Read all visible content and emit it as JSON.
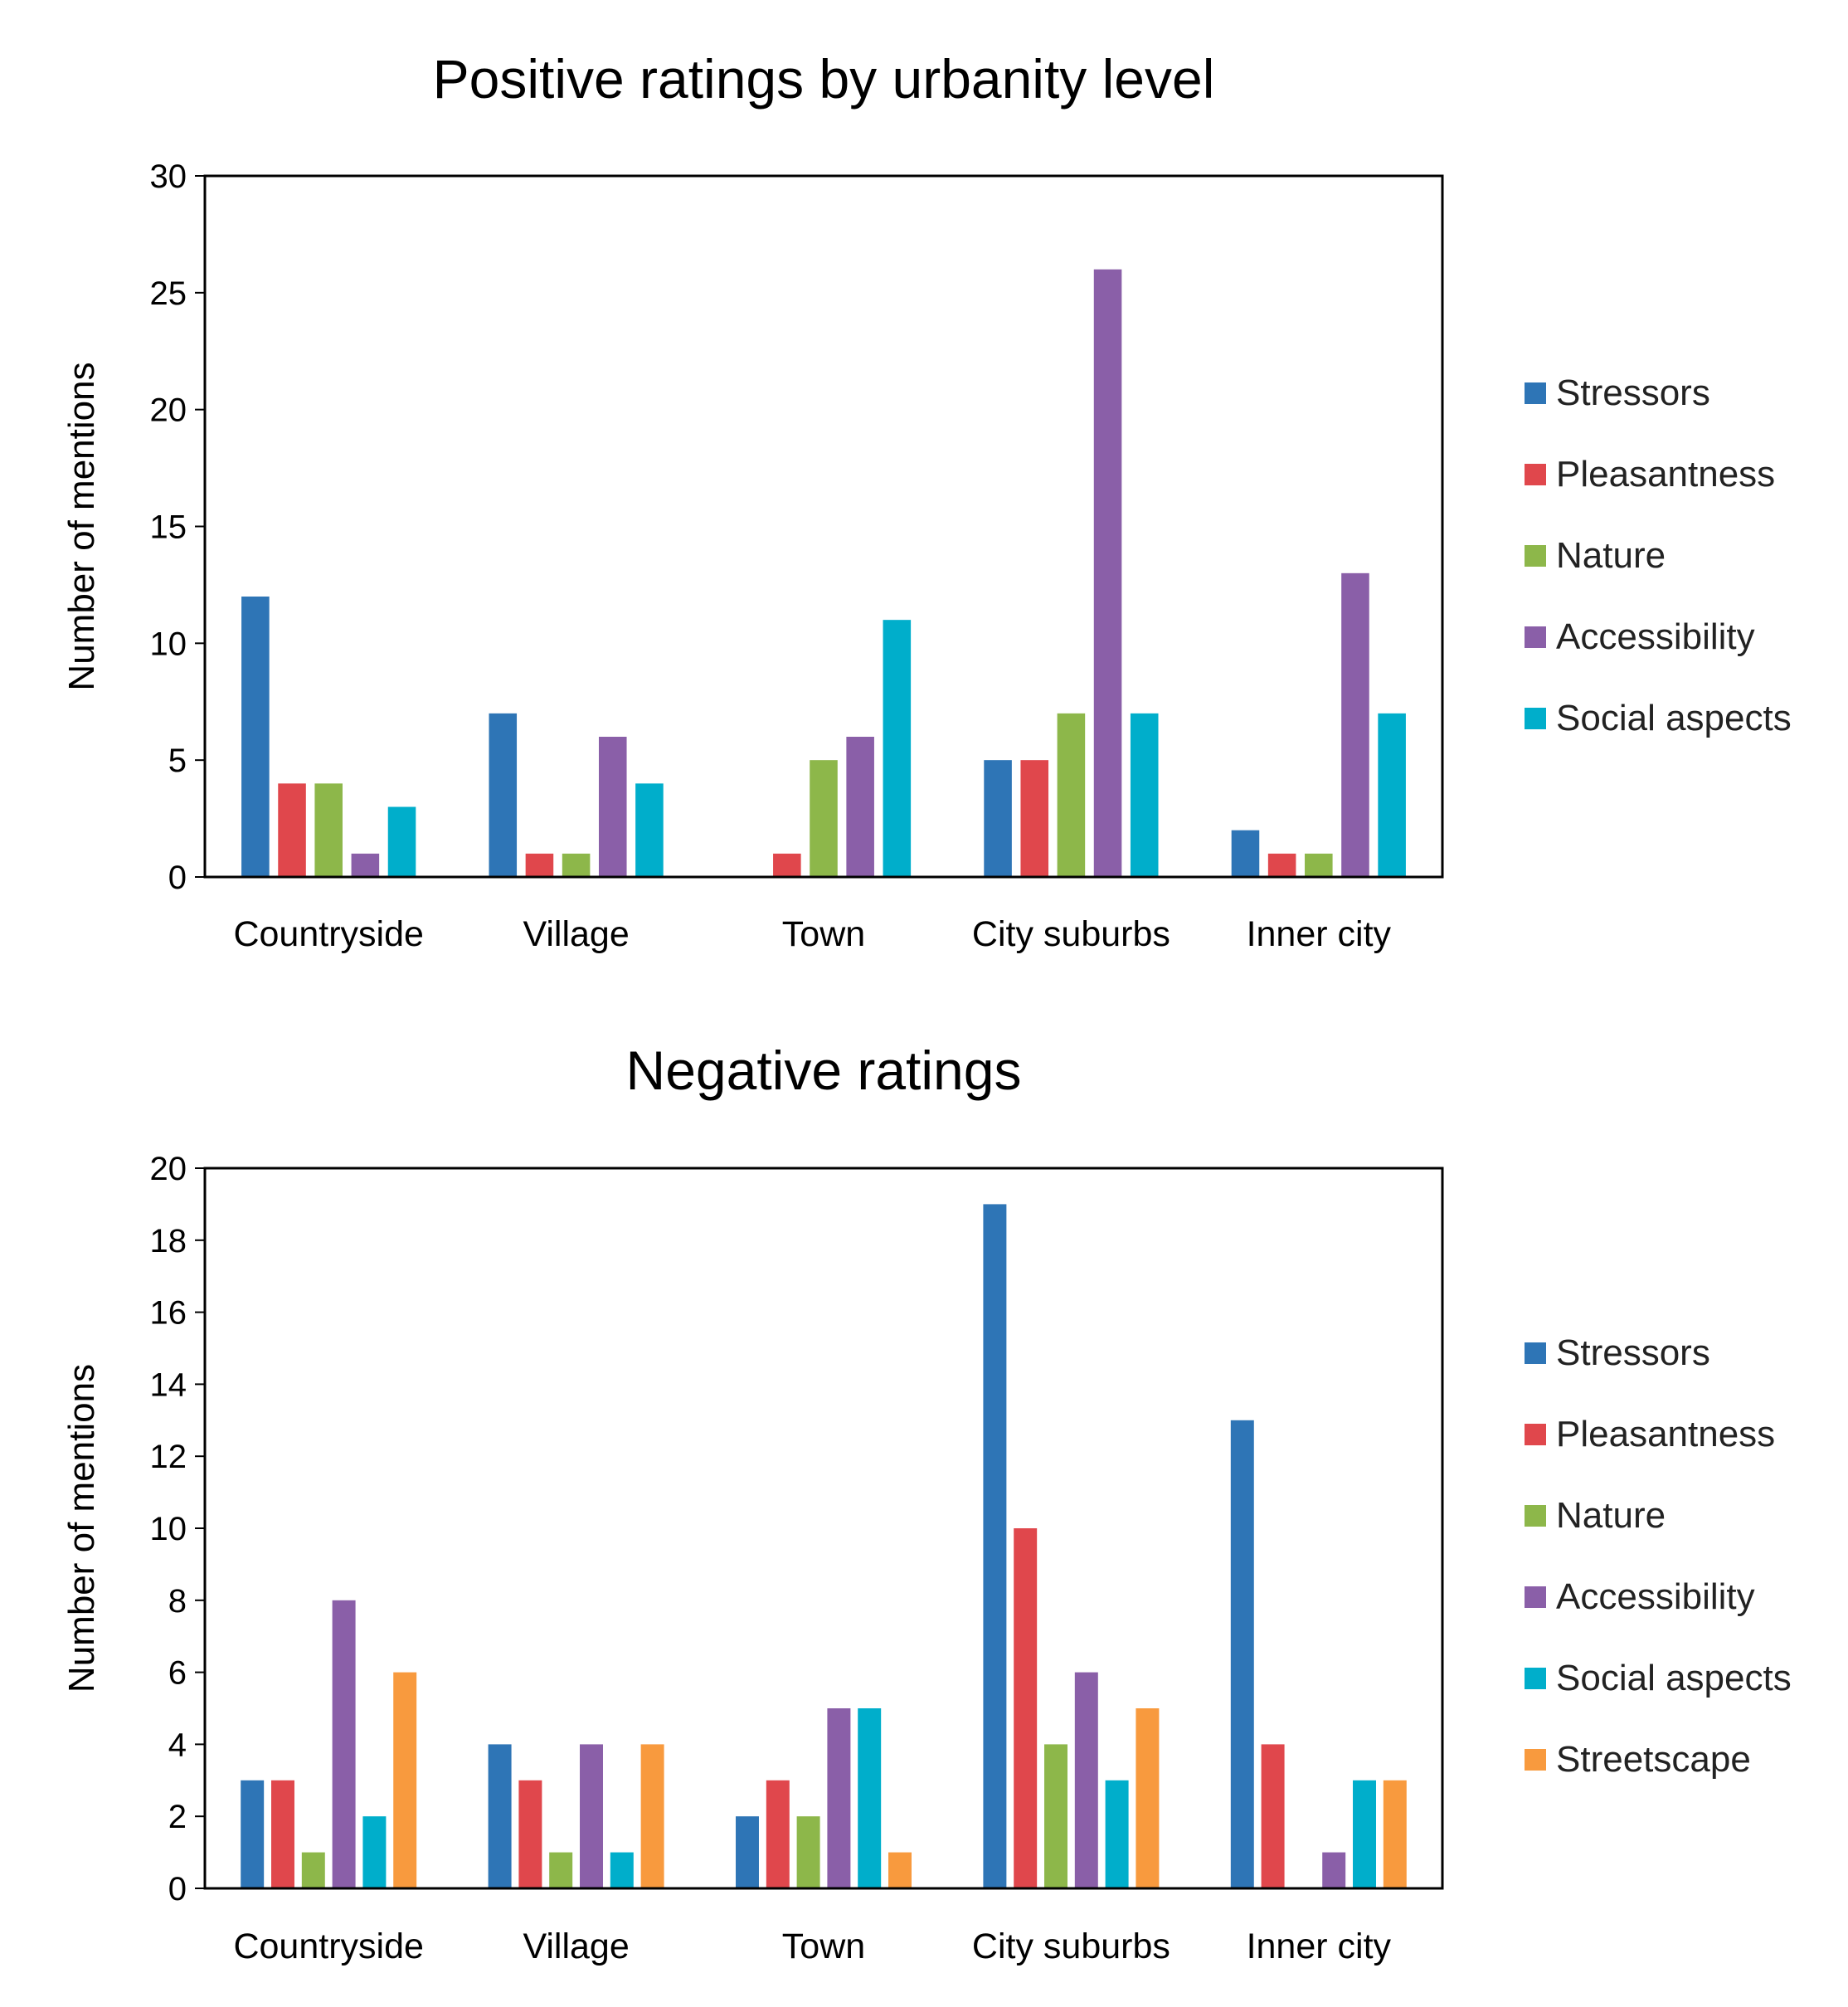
{
  "chart_data": [
    {
      "type": "bar",
      "title": "Positive ratings by urbanity level",
      "xlabel": "",
      "ylabel": "Number of mentions",
      "ylim": [
        0,
        30
      ],
      "yticks": [
        0,
        5,
        10,
        15,
        20,
        25,
        30
      ],
      "legend_position": "right",
      "grid": false,
      "categories": [
        "Countryside",
        "Village",
        "Town",
        "City suburbs",
        "Inner city"
      ],
      "series": [
        {
          "name": "Stressors",
          "color": "#2E75B6",
          "values": [
            12,
            7,
            0,
            5,
            2
          ]
        },
        {
          "name": "Pleasantness",
          "color": "#E0474C",
          "values": [
            4,
            1,
            1,
            5,
            1
          ]
        },
        {
          "name": "Nature",
          "color": "#8DB74A",
          "values": [
            4,
            1,
            5,
            7,
            1
          ]
        },
        {
          "name": "Accessibility",
          "color": "#8A5FA8",
          "values": [
            1,
            6,
            6,
            26,
            13
          ]
        },
        {
          "name": "Social aspects",
          "color": "#00AECB",
          "values": [
            3,
            4,
            11,
            7,
            7
          ]
        }
      ]
    },
    {
      "type": "bar",
      "title": "Negative ratings",
      "xlabel": "",
      "ylabel": "Number of mentions",
      "ylim": [
        0,
        20
      ],
      "yticks": [
        0,
        2,
        4,
        6,
        8,
        10,
        12,
        14,
        16,
        18,
        20
      ],
      "legend_position": "right",
      "grid": false,
      "categories": [
        "Countryside",
        "Village",
        "Town",
        "City suburbs",
        "Inner city"
      ],
      "series": [
        {
          "name": "Stressors",
          "color": "#2E75B6",
          "values": [
            3,
            4,
            2,
            19,
            13
          ]
        },
        {
          "name": "Pleasantness",
          "color": "#E0474C",
          "values": [
            3,
            3,
            3,
            10,
            4
          ]
        },
        {
          "name": "Nature",
          "color": "#8DB74A",
          "values": [
            1,
            1,
            2,
            4,
            0
          ]
        },
        {
          "name": "Accessibility",
          "color": "#8A5FA8",
          "values": [
            8,
            4,
            5,
            6,
            1
          ]
        },
        {
          "name": "Social aspects",
          "color": "#00AECB",
          "values": [
            2,
            1,
            5,
            3,
            3
          ]
        },
        {
          "name": "Streetscape",
          "color": "#F89A3E",
          "values": [
            6,
            4,
            1,
            5,
            3
          ]
        }
      ]
    }
  ]
}
